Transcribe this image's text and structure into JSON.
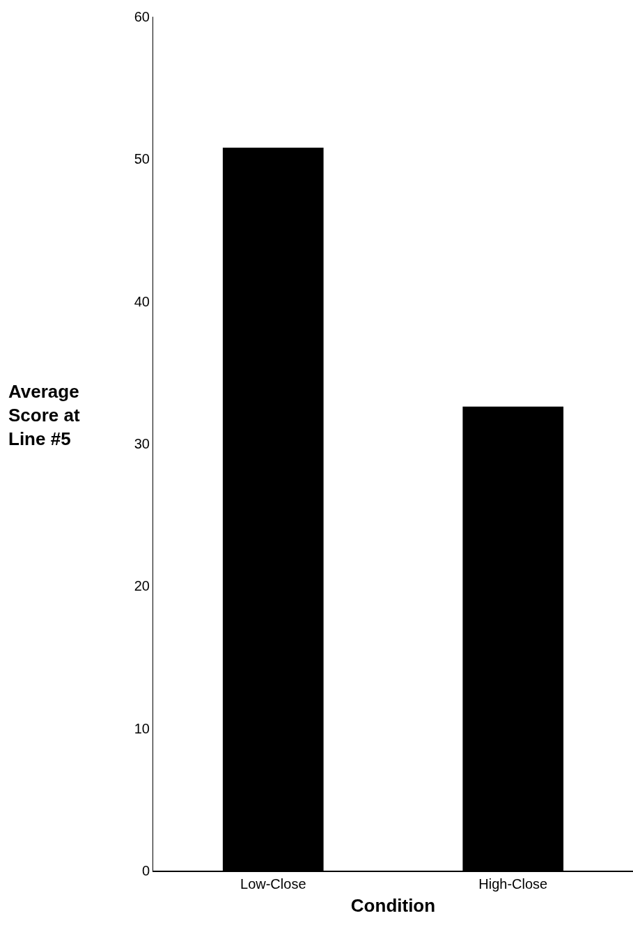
{
  "chart_data": {
    "type": "bar",
    "xlabel": "Condition",
    "ylabel": "Average Score at Line #5",
    "categories": [
      "Low-Close",
      "High-Close"
    ],
    "values": [
      50.8,
      32.6
    ],
    "color": "#000000",
    "ylim": [
      0,
      60
    ],
    "yticks": [
      0,
      10,
      20,
      30,
      40,
      50,
      60
    ]
  }
}
